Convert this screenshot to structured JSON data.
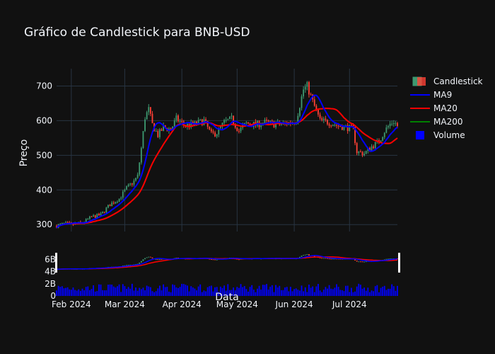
{
  "chart_data": {
    "type": "candlestick",
    "title": "Gráfico de Candlestick para BNB-USD",
    "xlabel": "Data",
    "ylabel": "Preço",
    "ylim": [
      280,
      750
    ],
    "x_ticks": [
      "Feb 2024",
      "Mar 2024",
      "Apr 2024",
      "May 2024",
      "Jun 2024",
      "Jul 2024"
    ],
    "y_ticks": [
      300,
      400,
      500,
      600,
      700
    ],
    "volume_ticks": [
      "0",
      "2B",
      "4B",
      "6B"
    ],
    "legend": [
      "Candlestick",
      "MA9",
      "MA20",
      "MA200",
      "Volume"
    ],
    "colors": {
      "increasing": "#3d9970",
      "decreasing": "#ff4136",
      "ma9": "#0000ff",
      "ma20": "#ff0000",
      "ma200": "#008000",
      "volume": "#0000ff"
    },
    "anchors": [
      [
        "2024-01-24",
        296
      ],
      [
        "2024-01-28",
        303
      ],
      [
        "2024-02-02",
        301
      ],
      [
        "2024-02-07",
        305
      ],
      [
        "2024-02-12",
        322
      ],
      [
        "2024-02-17",
        328
      ],
      [
        "2024-02-22",
        358
      ],
      [
        "2024-02-27",
        375
      ],
      [
        "2024-03-02",
        405
      ],
      [
        "2024-03-06",
        425
      ],
      [
        "2024-03-08",
        440
      ],
      [
        "2024-03-10",
        520
      ],
      [
        "2024-03-12",
        610
      ],
      [
        "2024-03-14",
        632
      ],
      [
        "2024-03-16",
        588
      ],
      [
        "2024-03-19",
        558
      ],
      [
        "2024-03-22",
        580
      ],
      [
        "2024-03-26",
        575
      ],
      [
        "2024-03-29",
        605
      ],
      [
        "2024-04-03",
        585
      ],
      [
        "2024-04-08",
        590
      ],
      [
        "2024-04-13",
        600
      ],
      [
        "2024-04-17",
        560
      ],
      [
        "2024-04-20",
        565
      ],
      [
        "2024-04-24",
        595
      ],
      [
        "2024-04-28",
        605
      ],
      [
        "2024-05-02",
        570
      ],
      [
        "2024-05-06",
        592
      ],
      [
        "2024-05-11",
        588
      ],
      [
        "2024-05-16",
        595
      ],
      [
        "2024-05-21",
        590
      ],
      [
        "2024-05-26",
        590
      ],
      [
        "2024-05-30",
        595
      ],
      [
        "2024-06-02",
        600
      ],
      [
        "2024-06-06",
        690
      ],
      [
        "2024-06-08",
        700
      ],
      [
        "2024-06-11",
        655
      ],
      [
        "2024-06-15",
        600
      ],
      [
        "2024-06-20",
        595
      ],
      [
        "2024-06-25",
        585
      ],
      [
        "2024-06-30",
        580
      ],
      [
        "2024-07-03",
        575
      ],
      [
        "2024-07-05",
        510
      ],
      [
        "2024-07-09",
        505
      ],
      [
        "2024-07-13",
        525
      ],
      [
        "2024-07-17",
        540
      ],
      [
        "2024-07-20",
        570
      ],
      [
        "2024-07-23",
        590
      ],
      [
        "2024-07-25",
        598
      ],
      [
        "2024-07-27",
        585
      ]
    ]
  }
}
